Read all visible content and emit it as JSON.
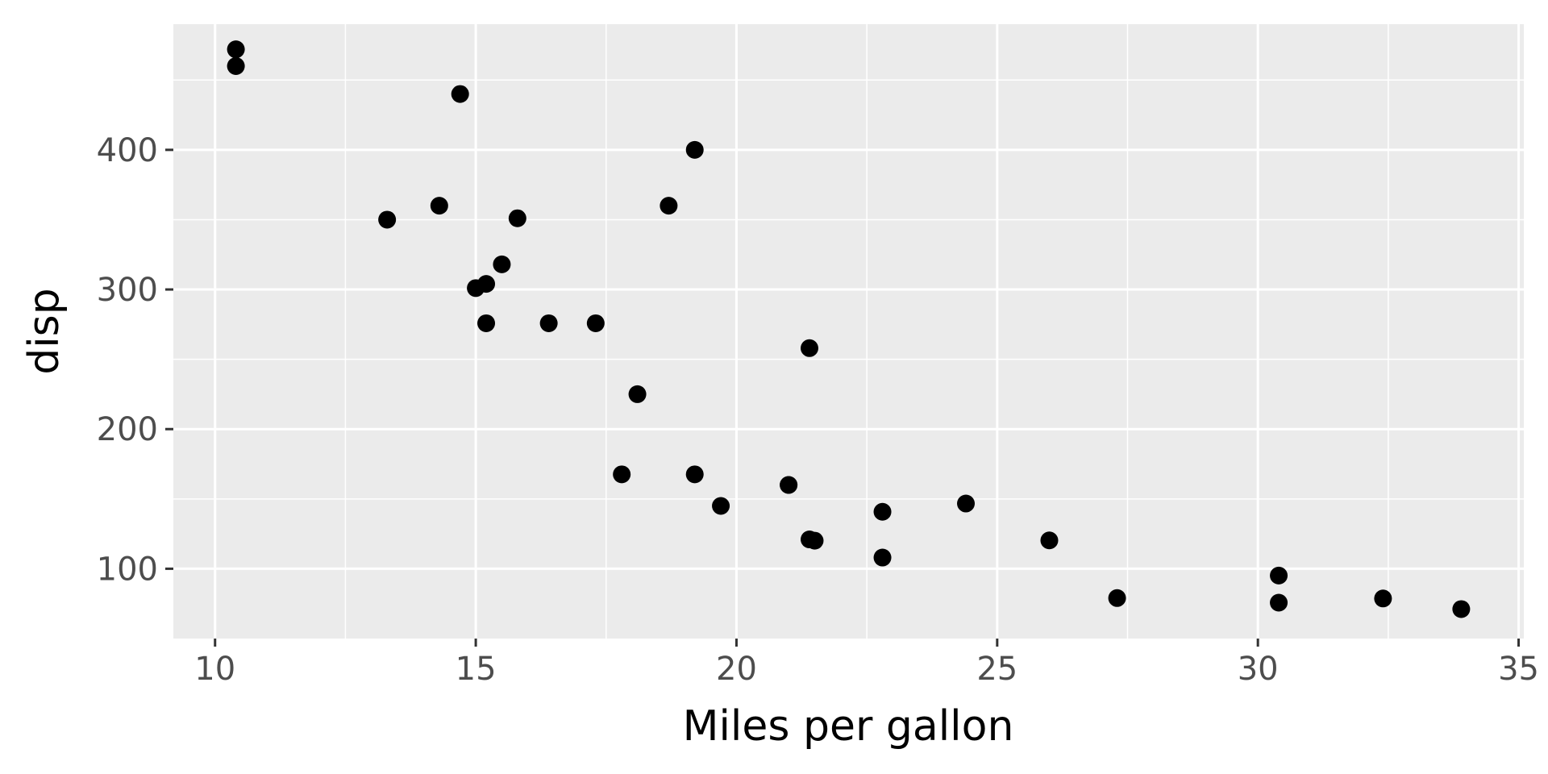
{
  "chart_data": {
    "type": "scatter",
    "title": "",
    "xlabel": "Miles per gallon",
    "ylabel": "disp",
    "xlim": [
      9.2,
      35.1
    ],
    "ylim": [
      50,
      490
    ],
    "x_ticks": [
      10,
      15,
      20,
      25,
      30,
      35
    ],
    "x_tick_labels": [
      "10",
      "15",
      "20",
      "25",
      "30",
      "35"
    ],
    "y_ticks": [
      100,
      200,
      300,
      400
    ],
    "y_tick_labels": [
      "100",
      "200",
      "300",
      "400"
    ],
    "grid": true,
    "colors": {
      "panel": "#ebebeb",
      "grid": "#ffffff",
      "point": "#000000",
      "tick_label": "#4d4d4d",
      "tick_mark": "#333333"
    },
    "points": [
      {
        "x": 21.0,
        "y": 160
      },
      {
        "x": 21.0,
        "y": 160
      },
      {
        "x": 22.8,
        "y": 108
      },
      {
        "x": 21.4,
        "y": 258
      },
      {
        "x": 18.7,
        "y": 360
      },
      {
        "x": 18.1,
        "y": 225
      },
      {
        "x": 14.3,
        "y": 360
      },
      {
        "x": 24.4,
        "y": 146.7
      },
      {
        "x": 22.8,
        "y": 140.8
      },
      {
        "x": 19.2,
        "y": 167.6
      },
      {
        "x": 17.8,
        "y": 167.6
      },
      {
        "x": 16.4,
        "y": 275.8
      },
      {
        "x": 17.3,
        "y": 275.8
      },
      {
        "x": 15.2,
        "y": 275.8
      },
      {
        "x": 10.4,
        "y": 472
      },
      {
        "x": 10.4,
        "y": 460
      },
      {
        "x": 14.7,
        "y": 440
      },
      {
        "x": 32.4,
        "y": 78.7
      },
      {
        "x": 30.4,
        "y": 75.7
      },
      {
        "x": 33.9,
        "y": 71.1
      },
      {
        "x": 21.5,
        "y": 120.1
      },
      {
        "x": 15.5,
        "y": 318
      },
      {
        "x": 15.2,
        "y": 304
      },
      {
        "x": 13.3,
        "y": 350
      },
      {
        "x": 19.2,
        "y": 400
      },
      {
        "x": 27.3,
        "y": 79
      },
      {
        "x": 26.0,
        "y": 120.3
      },
      {
        "x": 30.4,
        "y": 95.1
      },
      {
        "x": 15.8,
        "y": 351
      },
      {
        "x": 19.7,
        "y": 145
      },
      {
        "x": 15.0,
        "y": 301
      },
      {
        "x": 21.4,
        "y": 121
      }
    ]
  }
}
